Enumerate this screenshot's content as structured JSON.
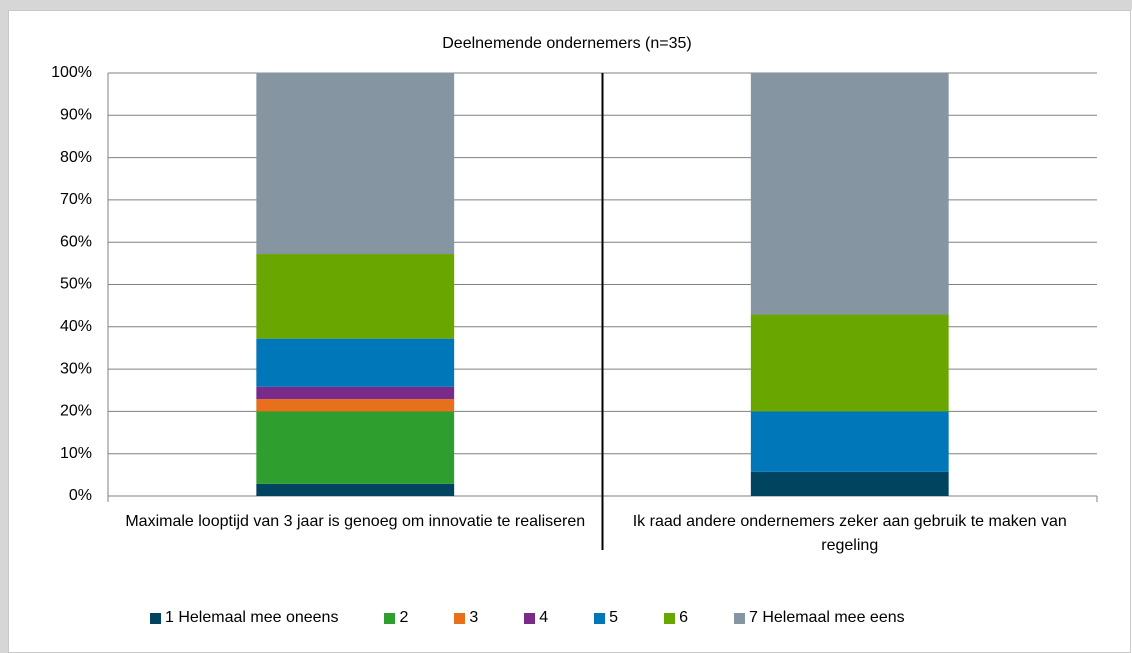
{
  "chart_data": {
    "type": "stacked_bar",
    "title": "Deelnemende ondernemers (n=35)",
    "categories": [
      "Maximale looptijd van 3 jaar is genoeg om innovatie te realiseren",
      "Ik raad andere ondernemers zeker aan gebruik te maken van regeling"
    ],
    "series": [
      {
        "name": "1 Helemaal mee oneens",
        "color": "#00445f",
        "values": [
          2.9,
          5.7
        ]
      },
      {
        "name": "2",
        "color": "#2e9f2e",
        "values": [
          17.1,
          0
        ]
      },
      {
        "name": "3",
        "color": "#e8701c",
        "values": [
          2.9,
          0
        ]
      },
      {
        "name": "4",
        "color": "#7a2a88",
        "values": [
          2.9,
          0
        ]
      },
      {
        "name": "5",
        "color": "#0077b8",
        "values": [
          11.4,
          14.3
        ]
      },
      {
        "name": "6",
        "color": "#6aa600",
        "values": [
          20,
          22.9
        ]
      },
      {
        "name": "7 Helemaal mee eens",
        "color": "#8595a2",
        "values": [
          42.9,
          57.1
        ]
      }
    ],
    "ylim": [
      0,
      100
    ],
    "yticks": [
      {
        "value": 0,
        "label": "0%"
      },
      {
        "value": 10,
        "label": "10%"
      },
      {
        "value": 20,
        "label": "20%"
      },
      {
        "value": 30,
        "label": "30%"
      },
      {
        "value": 40,
        "label": "40%"
      },
      {
        "value": 50,
        "label": "50%"
      },
      {
        "value": 60,
        "label": "60%"
      },
      {
        "value": 70,
        "label": "70%"
      },
      {
        "value": 80,
        "label": "80%"
      },
      {
        "value": 90,
        "label": "90%"
      },
      {
        "value": 100,
        "label": "100%"
      }
    ],
    "grid": true
  }
}
